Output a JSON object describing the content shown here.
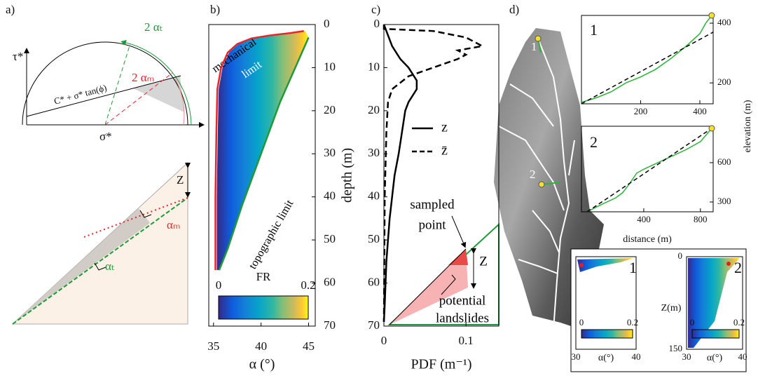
{
  "diagram": {
    "label": "a)",
    "tau": "τ*",
    "sigma": "σ*",
    "envelope": "C* + σ* tan(ϕ)",
    "two_alpha_t": "2 αₜ",
    "two_alpha_m": "2 αₘ",
    "z": "Z",
    "alpha_m": "αₘ",
    "alpha_t": "αₜ"
  },
  "map": {
    "label": "d)",
    "sites": [
      "1",
      "2"
    ]
  },
  "chart_data": [
    {
      "type": "heatmap",
      "label": "b)",
      "xlabel": "α (°)",
      "xlim": [
        34.5,
        45.7
      ],
      "xticks": [
        35,
        40,
        45
      ],
      "ylim": [
        0,
        70
      ],
      "y_inverted": true,
      "yticks": [
        0,
        10,
        20,
        30,
        40,
        50,
        60,
        70
      ],
      "y_tick_side": "right",
      "annotations": [
        "mechanical",
        "limit",
        "topographic limit"
      ],
      "series": [
        {
          "name": "mechanical limit",
          "color": "#e8262a",
          "x": [
            44.5,
            43,
            41,
            39,
            37.5,
            36.5,
            35.8,
            35.4,
            35.3,
            35.2,
            35.2
          ],
          "values": [
            1.5,
            2,
            2.5,
            3.2,
            4.5,
            6.5,
            10,
            15,
            25,
            40,
            57
          ]
        },
        {
          "name": "topographic limit",
          "color": "#1f9a3a",
          "x": [
            45,
            44,
            42,
            40,
            38,
            36.5,
            35.6
          ],
          "values": [
            3,
            8,
            18,
            30,
            42,
            52,
            57
          ]
        }
      ],
      "colorbar_label": "FR",
      "colorbar_lim": [
        0,
        0.2
      ],
      "colorbar_ticks": [
        0,
        0.2
      ]
    },
    {
      "type": "line",
      "label": "c)",
      "xlabel": "PDF (m⁻¹)",
      "ylabel": "depth (m)",
      "xlim": [
        0,
        0.14
      ],
      "xticks": [
        0,
        0.1
      ],
      "ylim": [
        0,
        70
      ],
      "y_inverted": true,
      "yticks": [
        0,
        10,
        20,
        30,
        40,
        50,
        60,
        70
      ],
      "y_tick_side": "left",
      "annotations": [
        "sampled",
        "point",
        "Z",
        "potential",
        "landslides"
      ],
      "series": [
        {
          "name": "z",
          "color": "#000000",
          "style": "solid",
          "x": [
            0,
            0.01,
            0.02,
            0.03,
            0.04,
            0.04,
            0.03,
            0.026,
            0.022,
            0.018,
            0.013,
            0.01,
            0.007,
            0.005,
            0.003,
            0.002,
            0.001,
            0
          ],
          "values": [
            0,
            5,
            8,
            10,
            13,
            15,
            18,
            20,
            25,
            30,
            35,
            40,
            45,
            50,
            55,
            60,
            65,
            69
          ]
        },
        {
          "name": "z̄",
          "color": "#000000",
          "style": "dashed",
          "x": [
            0,
            0,
            0.06,
            0.1,
            0.12,
            0.09,
            0.1,
            0.09,
            0.06,
            0.03,
            0.01,
            0.005,
            0.003,
            0.001,
            0
          ],
          "values": [
            0,
            1,
            1.5,
            3,
            5,
            6,
            7,
            8,
            10,
            12,
            15,
            18,
            25,
            40,
            69
          ]
        }
      ]
    },
    {
      "type": "line",
      "label": "1",
      "xlim": [
        0,
        445
      ],
      "xticks": [
        200,
        400
      ],
      "ylim": [
        130,
        426
      ],
      "yticks": [
        200,
        400
      ],
      "y_tick_side": "right",
      "series": [
        {
          "color": "#2bb33a",
          "style": "solid",
          "x": [
            0,
            50,
            100,
            150,
            200,
            250,
            300,
            350,
            400,
            420,
            440
          ],
          "values": [
            135,
            150,
            170,
            200,
            220,
            245,
            280,
            320,
            365,
            400,
            426
          ]
        },
        {
          "color": "#000000",
          "style": "dashed",
          "x": [
            0,
            445
          ],
          "values": [
            130,
            370
          ]
        }
      ]
    },
    {
      "type": "line",
      "label": "2",
      "xlabel": "distance (m)",
      "ylabel": "elevation (m)",
      "xlim": [
        -40,
        890
      ],
      "xticks": [
        400,
        800
      ],
      "ylim": [
        225,
        878
      ],
      "yticks": [
        300,
        600
      ],
      "y_tick_side": "right",
      "series": [
        {
          "color": "#2bb33a",
          "style": "solid",
          "x": [
            0,
            100,
            200,
            250,
            300,
            350,
            400,
            500,
            600,
            700,
            800,
            880
          ],
          "values": [
            225,
            280,
            330,
            370,
            440,
            520,
            550,
            600,
            650,
            700,
            760,
            862
          ]
        },
        {
          "color": "#000000",
          "style": "dashed",
          "x": [
            0,
            880
          ],
          "values": [
            225,
            862
          ]
        }
      ]
    },
    {
      "type": "heatmap",
      "label": "1",
      "xlabel": "α(°)",
      "xlim": [
        30,
        40
      ],
      "xticks": [
        30,
        40
      ],
      "ylim": [
        0,
        150
      ],
      "y_inverted": true,
      "yticks": [],
      "y_tick_side": "left",
      "colorbar_lim": [
        0,
        0.2
      ],
      "colorbar_ticks": [
        0,
        0.2
      ]
    },
    {
      "type": "heatmap",
      "label": "2",
      "xlabel": "α(°)",
      "ylabel": "Z(m)",
      "xlim": [
        30,
        40
      ],
      "xticks": [
        30,
        40
      ],
      "ylim": [
        0,
        150
      ],
      "y_inverted": true,
      "yticks": [
        0,
        150
      ],
      "y_tick_side": "left",
      "colorbar_lim": [
        0,
        0.2
      ],
      "colorbar_ticks": [
        0,
        0.2
      ]
    }
  ]
}
